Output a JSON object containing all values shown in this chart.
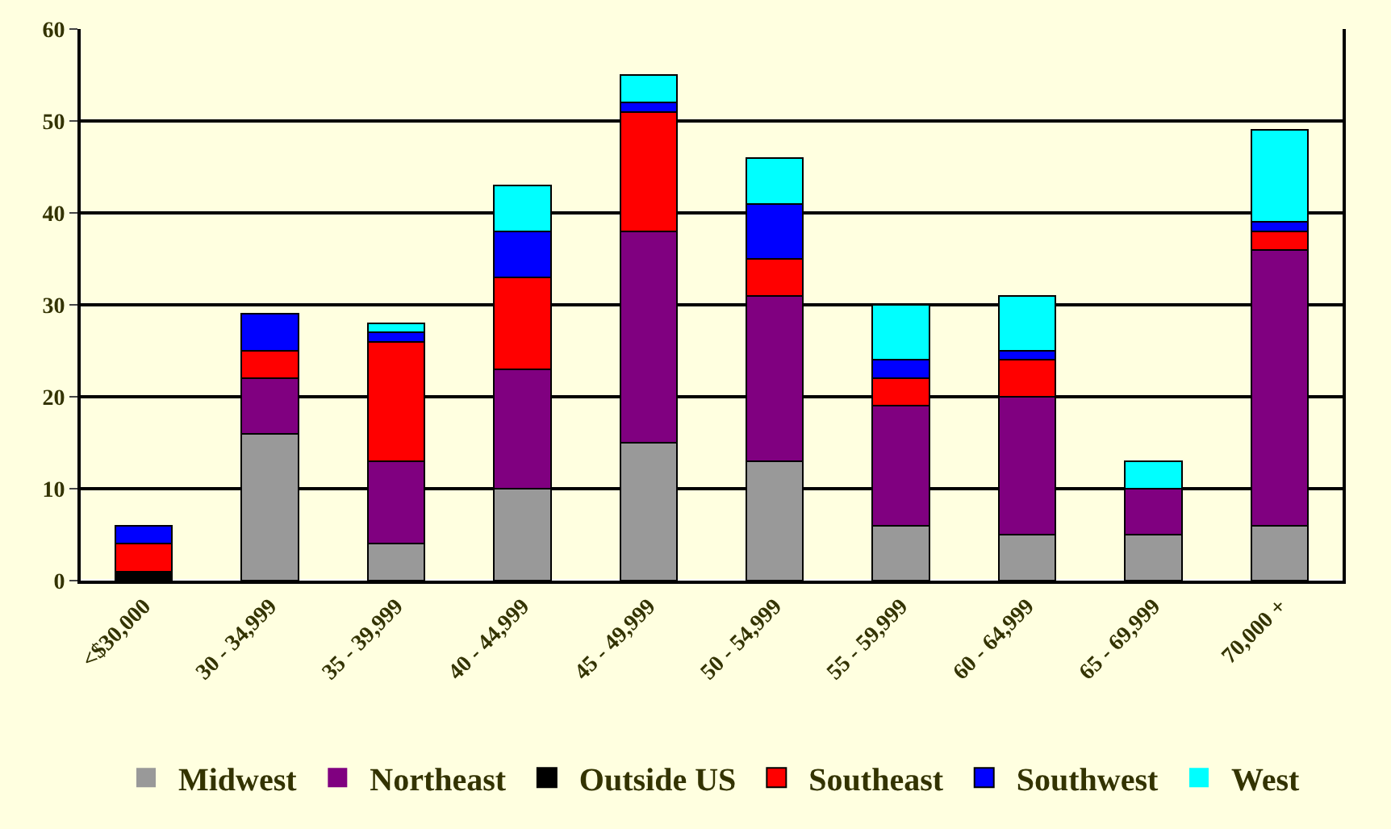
{
  "chart_data": {
    "type": "bar",
    "stacked": true,
    "categories": [
      "<$30,000",
      "30 - 34,999",
      "35 - 39,999",
      "40 - 44,999",
      "45 - 49,999",
      "50 - 54,999",
      "55 - 59,999",
      "60 - 64,999",
      "65 - 69,999",
      "70,000 +"
    ],
    "series": [
      {
        "name": "Midwest",
        "color": "#999999",
        "values": [
          0,
          16,
          4,
          10,
          15,
          13,
          6,
          5,
          5,
          6
        ]
      },
      {
        "name": "Northeast",
        "color": "#800080",
        "values": [
          0,
          6,
          9,
          13,
          23,
          18,
          13,
          15,
          5,
          30
        ]
      },
      {
        "name": "Outside US",
        "color": "#000000",
        "values": [
          1,
          0,
          0,
          0,
          0,
          0,
          0,
          0,
          0,
          0
        ]
      },
      {
        "name": "Southeast",
        "color": "#ff0000",
        "values": [
          3,
          3,
          13,
          10,
          13,
          4,
          3,
          4,
          0,
          2
        ]
      },
      {
        "name": "Southwest",
        "color": "#0000ff",
        "values": [
          2,
          4,
          1,
          5,
          1,
          6,
          2,
          1,
          0,
          1
        ]
      },
      {
        "name": "West",
        "color": "#00ffff",
        "values": [
          0,
          0,
          1,
          5,
          3,
          5,
          6,
          6,
          3,
          10
        ]
      }
    ],
    "ylim": [
      0,
      60
    ],
    "yticks": [
      0,
      10,
      20,
      30,
      40,
      50,
      60
    ],
    "grid": "y",
    "legend": "bottom"
  }
}
